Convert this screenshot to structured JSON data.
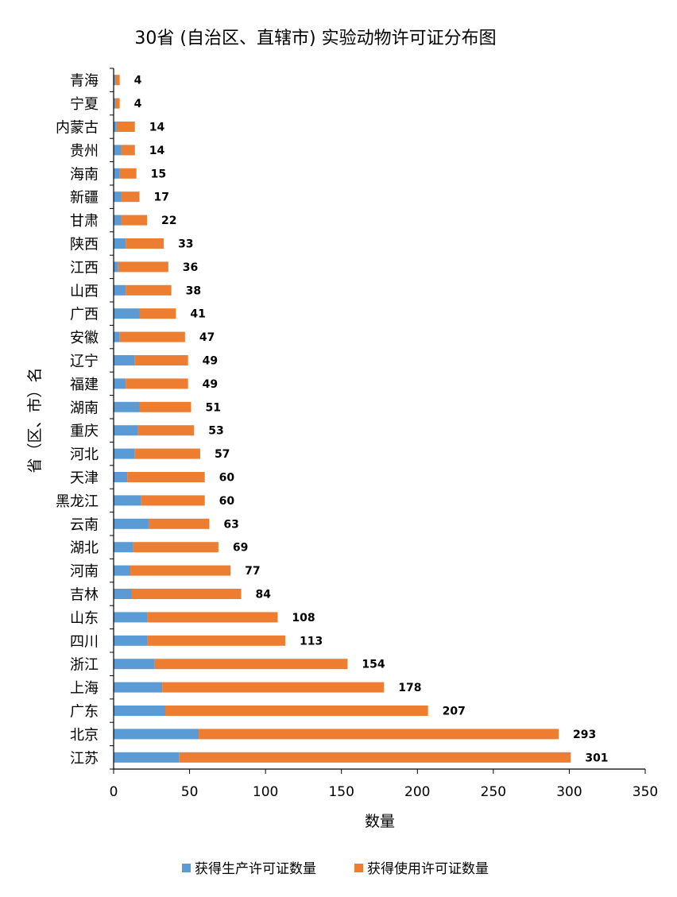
{
  "chart_data": {
    "type": "bar",
    "orientation": "horizontal",
    "stacked": true,
    "title": "30省 (自治区、直辖市) 实验动物许可证分布图",
    "xlabel": "数量",
    "ylabel": "省（区、市）名",
    "xlim": [
      0,
      350
    ],
    "xticks": [
      "0",
      "50",
      "100",
      "150",
      "200",
      "250",
      "300",
      "350"
    ],
    "grid": false,
    "legend_position": "bottom",
    "categories": [
      "青海",
      "宁夏",
      "内蒙古",
      "贵州",
      "海南",
      "新疆",
      "甘肃",
      "陕西",
      "江西",
      "山西",
      "广西",
      "安徽",
      "辽宁",
      "福建",
      "湖南",
      "重庆",
      "河北",
      "天津",
      "黑龙江",
      "云南",
      "湖北",
      "河南",
      "吉林",
      "山东",
      "四川",
      "浙江",
      "上海",
      "广东",
      "北京",
      "江苏"
    ],
    "series": [
      {
        "name": "获得生产许可证数量",
        "color": "#5b9bd5",
        "values": [
          1,
          1,
          2,
          5,
          4,
          5,
          5,
          8,
          3,
          8,
          17,
          4,
          14,
          8,
          17,
          16,
          14,
          9,
          18,
          23,
          13,
          11,
          12,
          22,
          22,
          27,
          32,
          34,
          56,
          43
        ]
      },
      {
        "name": "获得使用许可证数量",
        "color": "#ed7d31",
        "values": [
          3,
          3,
          12,
          9,
          11,
          12,
          17,
          25,
          33,
          30,
          24,
          43,
          35,
          41,
          34,
          37,
          43,
          51,
          42,
          40,
          56,
          66,
          72,
          86,
          91,
          127,
          146,
          173,
          237,
          258
        ]
      }
    ],
    "totals": [
      "4",
      "4",
      "14",
      "14",
      "15",
      "17",
      "22",
      "33",
      "36",
      "38",
      "41",
      "47",
      "49",
      "49",
      "51",
      "53",
      "57",
      "60",
      "60",
      "63",
      "69",
      "77",
      "84",
      "108",
      "113",
      "154",
      "178",
      "207",
      "293",
      "301"
    ]
  }
}
